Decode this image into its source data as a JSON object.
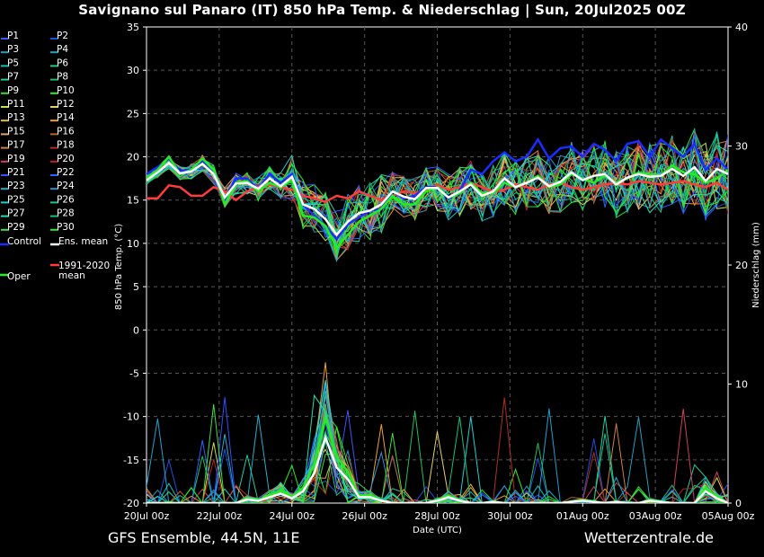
{
  "title": "Savignano sul Panaro  (IT)  850 hPa Temp. & Niederschlag | Sun, 20Jul2025 00Z",
  "footer": {
    "left": "GFS Ensemble, 44.5N, 11E",
    "right": "Wetterzentrale.de"
  },
  "chart_data": {
    "type": "line",
    "title": "Savignano sul Panaro  (IT)  850 hPa Temp. & Niederschlag | Sun, 20Jul2025 00Z",
    "xlabel": "Date (UTC)",
    "ylabel_left": "850 hPa Temp. (°C)",
    "ylabel_right": "Niederschlag (mm)",
    "ylim_left": [
      -20,
      35
    ],
    "ylim_right": [
      0,
      40
    ],
    "yticks_left": [
      "35",
      "30",
      "25",
      "20",
      "15",
      "10",
      "5",
      "0",
      "-5",
      "-10",
      "-15",
      "-20"
    ],
    "yticks_right": [
      "40",
      "30",
      "20",
      "10",
      "0"
    ],
    "xlim_hours": [
      0,
      384
    ],
    "xticks": [
      "20Jul 00z",
      "22Jul 00z",
      "24Jul 00z",
      "26Jul 00z",
      "28Jul 00z",
      "30Jul 00z",
      "01Aug 00z",
      "03Aug 00z",
      "05Aug 00z"
    ],
    "grid": true,
    "legend_position": "left",
    "legend": [
      "P1",
      "P2",
      "P3",
      "P4",
      "P5",
      "P6",
      "P7",
      "P8",
      "P9",
      "P10",
      "P11",
      "P12",
      "P13",
      "P14",
      "P15",
      "P16",
      "P17",
      "P18",
      "P19",
      "P20",
      "P21",
      "P22",
      "P23",
      "P24",
      "P25",
      "P26",
      "P27",
      "P28",
      "P29",
      "P30",
      "Control",
      "Ens. mean",
      "1991-2020 mean",
      "Oper"
    ],
    "member_colors": [
      "#3d55ff",
      "#1f4fe0",
      "#22a0c0",
      "#20a0d0",
      "#10c0c0",
      "#20d080",
      "#20d0a0",
      "#20c060",
      "#30e030",
      "#30f020",
      "#c8e040",
      "#e8d060",
      "#e0c040",
      "#f0a030",
      "#e8a070",
      "#c06020",
      "#d08040",
      "#b03020",
      "#d04060",
      "#c02020",
      "#3050ff",
      "#3060ff",
      "#20b0d0",
      "#3090d0",
      "#20d0d0",
      "#20c090",
      "#20e0b0",
      "#10c080",
      "#40e040",
      "#20f020"
    ],
    "control_color": "#1c2cff",
    "mean_color": "#ffffff",
    "clim_color": "#ff3b3b",
    "oper_color": "#22ee22",
    "ens_mean_temp": [
      17.3,
      18.2,
      19.3,
      18.1,
      18.3,
      19.2,
      18.0,
      15.3,
      16.9,
      17.0,
      16.3,
      17.5,
      16.6,
      17.7,
      14.5,
      14.0,
      12.8,
      11.0,
      12.5,
      13.5,
      13.8,
      14.5,
      16.0,
      15.4,
      15.1,
      16.4,
      16.4,
      15.3,
      16.0,
      16.8,
      15.5,
      16.0,
      17.5,
      16.5,
      17.0,
      17.6,
      16.6,
      17.1,
      18.2,
      17.3,
      17.8,
      18.0,
      16.8,
      17.6,
      18.0,
      17.7,
      17.8,
      18.6,
      17.8,
      18.8,
      17.2,
      18.6,
      18.0
    ],
    "control_temp": [
      18.0,
      18.8,
      19.8,
      18.4,
      18.5,
      19.5,
      18.0,
      15.0,
      17.5,
      17.5,
      16.2,
      18.0,
      17.0,
      18.0,
      14.5,
      13.2,
      12.0,
      10.5,
      12.2,
      13.0,
      13.8,
      14.0,
      16.0,
      15.2,
      15.5,
      16.5,
      16.5,
      15.2,
      16.0,
      18.5,
      18.0,
      19.5,
      20.5,
      19.5,
      20.0,
      22.0,
      19.8,
      21.0,
      21.2,
      20.0,
      21.5,
      20.8,
      19.5,
      21.5,
      21.8,
      20.0,
      22.0,
      21.0,
      20.0,
      21.5,
      18.5,
      19.8,
      18.5
    ],
    "oper_temp": [
      17.5,
      18.5,
      20.0,
      18.0,
      18.5,
      19.8,
      18.5,
      14.5,
      17.0,
      17.2,
      16.0,
      17.0,
      16.5,
      17.3,
      13.2,
      13.0,
      12.0,
      9.5,
      11.0,
      12.5,
      13.2,
      14.0,
      15.5,
      14.5,
      14.5,
      16.0,
      16.5,
      15.3,
      15.8,
      17.0,
      15.8,
      15.8,
      17.0,
      16.5,
      17.0,
      17.8,
      16.5,
      16.8,
      18.0,
      17.5,
      17.0,
      17.8,
      17.0,
      17.5,
      18.2,
      18.0,
      17.8,
      19.0,
      18.2,
      18.0,
      17.0,
      17.5,
      18.5
    ],
    "clim_temp": [
      15.2,
      15.2,
      16.7,
      16.5,
      15.5,
      15.5,
      16.5,
      16.0,
      15.0,
      16.0,
      16.5,
      16.8,
      16.5,
      16.2,
      15.5,
      15.2,
      14.8,
      15.5,
      15.2,
      16.0,
      15.5,
      15.0,
      15.5,
      16.0,
      15.8,
      16.2,
      16.8,
      16.2,
      16.5,
      17.0,
      16.5,
      16.0,
      16.2,
      16.8,
      16.5,
      16.2,
      16.8,
      17.0,
      16.5,
      16.2,
      16.5,
      16.8,
      17.0,
      16.8,
      17.2,
      17.0,
      16.8,
      17.0,
      17.2,
      16.8,
      16.5,
      17.0,
      16.2
    ],
    "ens_mean_precip": [
      0,
      0,
      0,
      0,
      0,
      0,
      0,
      0,
      0,
      0.3,
      0.2,
      0.5,
      0.8,
      0.4,
      1.0,
      2.5,
      5.5,
      3.0,
      2.0,
      0.5,
      0.5,
      0.2,
      0,
      0,
      0,
      0,
      0.2,
      0.5,
      0.2,
      0,
      0,
      0.1,
      0,
      0,
      0,
      0,
      0,
      0,
      0.1,
      0.2,
      0.1,
      0,
      0.1,
      0,
      0,
      0.2,
      0.1,
      0,
      0,
      0,
      1.0,
      0.4,
      0
    ]
  }
}
